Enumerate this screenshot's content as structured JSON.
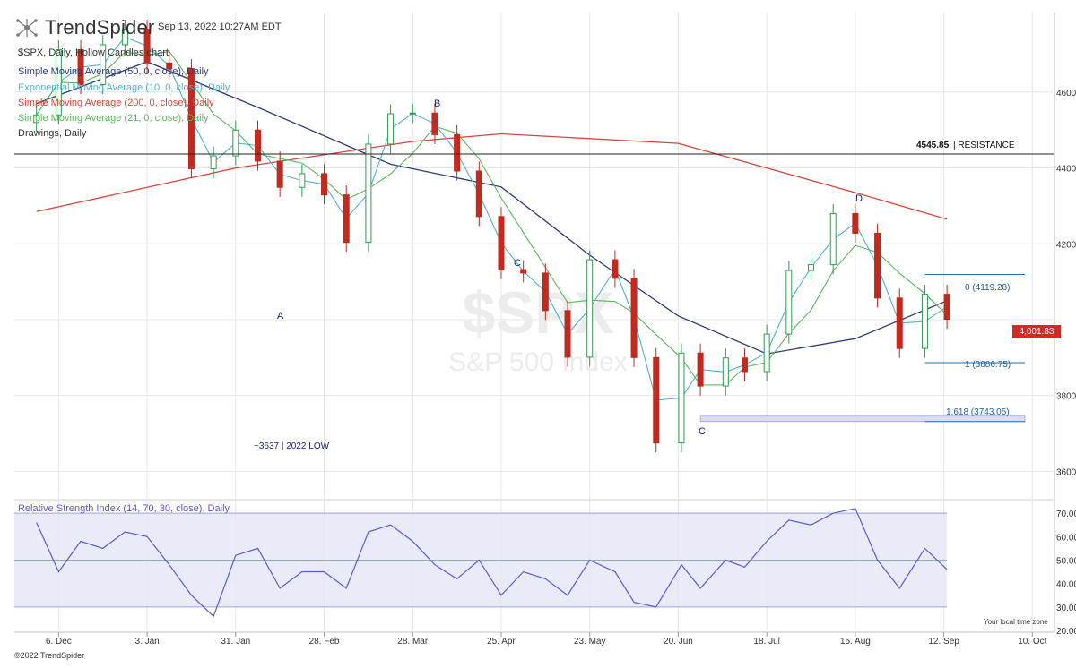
{
  "header": {
    "brand": "TrendSpider",
    "timestamp": "Sep 13, 2022 10:27AM EDT",
    "chart_title": "$SPX, Daily, Hollow Candles chart",
    "watermark_symbol": "$SPX",
    "watermark_name": "S&P 500 Index"
  },
  "legend": [
    {
      "label": "Simple Moving Average (50, 0, close), Daily",
      "color": "#2e3a7a"
    },
    {
      "label": "Exponential Moving Average (10, 0, close), Daily",
      "color": "#4db3d6"
    },
    {
      "label": "Simple Moving Average (200, 0, close), Daily",
      "color": "#d9463b"
    },
    {
      "label": "Simple Moving Average (21, 0, close), Daily",
      "color": "#5cb85c"
    },
    {
      "label": "Drawings, Daily",
      "color": "#333333"
    }
  ],
  "annotations": {
    "resistance_value": "4545.85",
    "resistance_text": "| RESISTANCE",
    "wave_a": "A",
    "wave_b": "B",
    "wave_c1": "C",
    "wave_c2": "C",
    "wave_d": "D",
    "low_note": "~3637 | 2022 LOW",
    "fib_0": "0 (4119.28)",
    "fib_1": "1 (3886.75)",
    "fib_1618": "1.618 (3743.05)",
    "last_price": "4,001.83"
  },
  "rsi": {
    "title": "Relative Strength Index (14, 70, 30, close), Daily"
  },
  "footer": {
    "copyright": "©2022 TrendSpider",
    "local_time": "Your local time zone"
  },
  "colors": {
    "up_candle": "#2e9e4f",
    "down_candle": "#c02a1f",
    "rsi_line": "#5b5bd6",
    "rsi_band": "#e3e6f7",
    "fib_line": "#1f6fb2",
    "grid": "#e6e6e6"
  },
  "chart_data": [
    {
      "type": "line",
      "title": "$SPX, Daily, Hollow Candles chart",
      "x_ticks": [
        "6. Dec",
        "3. Jan",
        "31. Jan",
        "28. Feb",
        "28. Mar",
        "25. Apr",
        "23. May",
        "20. Jun",
        "18. Jul",
        "15. Aug",
        "12. Sep",
        "10. Oct"
      ],
      "y_ticks": [
        3600,
        3800,
        4000,
        4200,
        4400,
        4600
      ],
      "y_tick_labels": [
        "3600.00",
        "3800.00",
        "",
        "4200.00",
        "4400.00",
        "4600.00"
      ],
      "ylim": [
        3530,
        4810
      ],
      "grid": true,
      "series": [
        {
          "name": "SPX close",
          "x": [
            "2021-11-29",
            "2021-12-06",
            "2021-12-13",
            "2021-12-20",
            "2021-12-27",
            "2022-01-03",
            "2022-01-10",
            "2022-01-17",
            "2022-01-24",
            "2022-01-31",
            "2022-02-07",
            "2022-02-14",
            "2022-02-21",
            "2022-02-28",
            "2022-03-07",
            "2022-03-14",
            "2022-03-21",
            "2022-03-28",
            "2022-04-04",
            "2022-04-11",
            "2022-04-18",
            "2022-04-25",
            "2022-05-02",
            "2022-05-09",
            "2022-05-16",
            "2022-05-23",
            "2022-05-31",
            "2022-06-06",
            "2022-06-13",
            "2022-06-21",
            "2022-06-27",
            "2022-07-05",
            "2022-07-11",
            "2022-07-18",
            "2022-07-25",
            "2022-08-01",
            "2022-08-08",
            "2022-08-15",
            "2022-08-22",
            "2022-08-29",
            "2022-09-06",
            "2022-09-13"
          ],
          "values": [
            4540,
            4712,
            4620,
            4725,
            4766,
            4677,
            4662,
            4398,
            4432,
            4500,
            4418,
            4349,
            4385,
            4329,
            4204,
            4463,
            4543,
            4545,
            4488,
            4392,
            4272,
            4132,
            4123,
            4024,
            3901,
            4158,
            4109,
            3900,
            3675,
            3912,
            3825,
            3899,
            3863,
            3962,
            4130,
            4145,
            4280,
            4228,
            4057,
            3924,
            4067,
            4001
          ]
        },
        {
          "name": "Simple Moving Average (200, 0, close), Daily",
          "x": [
            "2021-11-29",
            "2022-01-31",
            "2022-03-28",
            "2022-04-25",
            "2022-06-20",
            "2022-08-15",
            "2022-09-13"
          ],
          "values": [
            4285,
            4400,
            4470,
            4490,
            4465,
            4335,
            4265
          ]
        },
        {
          "name": "Simple Moving Average (50, 0, close), Daily",
          "x": [
            "2021-11-29",
            "2022-01-03",
            "2022-02-07",
            "2022-03-21",
            "2022-04-25",
            "2022-05-23",
            "2022-06-20",
            "2022-07-18",
            "2022-08-15",
            "2022-09-13"
          ],
          "values": [
            4570,
            4680,
            4560,
            4410,
            4350,
            4170,
            4010,
            3910,
            3950,
            4050
          ]
        }
      ],
      "annotations": {
        "resistance": 4545.85,
        "fib_0": 4119.28,
        "fib_1": 3886.75,
        "fib_1618": 3743.05,
        "last_price": 4001.83,
        "year_low": 3637
      }
    },
    {
      "type": "line",
      "title": "Relative Strength Index (14, 70, 30, close), Daily",
      "y_ticks": [
        20,
        30,
        40,
        50,
        60,
        70
      ],
      "y_tick_labels": [
        "20.00",
        "30.00",
        "40.00",
        "50.00",
        "60.00",
        "70.00"
      ],
      "ylim": [
        20,
        75
      ],
      "band": [
        30,
        70
      ],
      "series": [
        {
          "name": "RSI",
          "x": [
            "2021-11-29",
            "2021-12-06",
            "2021-12-13",
            "2021-12-20",
            "2021-12-27",
            "2022-01-03",
            "2022-01-10",
            "2022-01-17",
            "2022-01-24",
            "2022-01-31",
            "2022-02-07",
            "2022-02-14",
            "2022-02-21",
            "2022-02-28",
            "2022-03-07",
            "2022-03-14",
            "2022-03-21",
            "2022-03-28",
            "2022-04-04",
            "2022-04-11",
            "2022-04-18",
            "2022-04-25",
            "2022-05-02",
            "2022-05-09",
            "2022-05-16",
            "2022-05-23",
            "2022-05-31",
            "2022-06-06",
            "2022-06-13",
            "2022-06-21",
            "2022-06-27",
            "2022-07-05",
            "2022-07-11",
            "2022-07-18",
            "2022-07-25",
            "2022-08-01",
            "2022-08-08",
            "2022-08-15",
            "2022-08-22",
            "2022-08-29",
            "2022-09-06",
            "2022-09-13"
          ],
          "values": [
            66,
            45,
            58,
            55,
            62,
            60,
            48,
            35,
            26,
            52,
            55,
            38,
            45,
            45,
            38,
            62,
            65,
            58,
            48,
            42,
            50,
            35,
            45,
            42,
            35,
            50,
            45,
            32,
            30,
            48,
            38,
            50,
            47,
            58,
            67,
            65,
            70,
            72,
            50,
            38,
            55,
            46
          ]
        }
      ]
    }
  ]
}
